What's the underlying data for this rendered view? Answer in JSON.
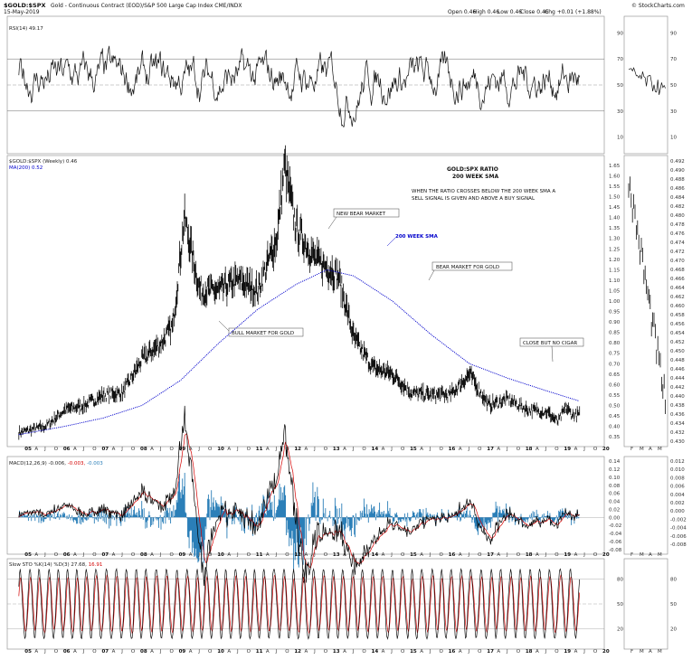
{
  "header": {
    "symbol": "$GOLD:$SPX",
    "description": "Gold - Continuous Contract (EOD)/S&P 500 Large Cap Index  CME/INDX",
    "date": "15-May-2019",
    "open": "Open 0.46",
    "high": "High 0.46",
    "low": "Low 0.46",
    "close": "Close 0.46",
    "chg": "Chg +0.01 (+1.88%)",
    "watermark": "© StockCharts.com"
  },
  "panels": {
    "rsi": {
      "legend": "RSI(14) 49.17",
      "levels": [
        "90",
        "70",
        "50",
        "30",
        "10"
      ]
    },
    "price": {
      "legend1": "$GOLD:$SPX (Weekly) 0.46",
      "legend2": "MA(200) 0.52",
      "ticks": [
        "1.65",
        "1.60",
        "1.55",
        "1.50",
        "1.45",
        "1.40",
        "1.35",
        "1.30",
        "1.25",
        "1.20",
        "1.15",
        "1.10",
        "1.05",
        "1.00",
        "0.95",
        "0.90",
        "0.85",
        "0.80",
        "0.75",
        "0.70",
        "0.65",
        "0.60",
        "0.55",
        "0.50",
        "0.45",
        "0.40",
        "0.35"
      ],
      "side_ticks": [
        "0.492",
        "0.490",
        "0.488",
        "0.486",
        "0.484",
        "0.482",
        "0.480",
        "0.478",
        "0.476",
        "0.474",
        "0.472",
        "0.470",
        "0.468",
        "0.466",
        "0.464",
        "0.462",
        "0.460",
        "0.458",
        "0.456",
        "0.454",
        "0.452",
        "0.450",
        "0.448",
        "0.446",
        "0.444",
        "0.442",
        "0.440",
        "0.438",
        "0.436",
        "0.434",
        "0.432",
        "0.430"
      ]
    },
    "macd": {
      "legend_a": "MACD(12,26,9) -0.006,",
      "legend_b": "-0.003,",
      "legend_c": "-0.003",
      "ticks": [
        "0.14",
        "0.12",
        "0.10",
        "0.08",
        "0.06",
        "0.04",
        "0.02",
        "0.00",
        "-0.02",
        "-0.04",
        "-0.06",
        "-0.08"
      ],
      "side_ticks": [
        "0.012",
        "0.010",
        "0.008",
        "0.006",
        "0.004",
        "0.002",
        "0.000",
        "-0.002",
        "-0.004",
        "-0.006",
        "-0.008"
      ]
    },
    "sto": {
      "legend_a": "Slow STO %K(14) %D(3) 27.68,",
      "legend_b": "16.91",
      "ticks": [
        "80",
        "50",
        "20"
      ]
    }
  },
  "annotations": {
    "title1": "GOLD:SPX RATIO",
    "title2": "200 WEEK SMA",
    "note1": "WHEN THE RATIO CROSSES BELOW THE 200 WEEK SMA A",
    "note2": "SELL SIGNAL IS GIVEN AND ABOVE A BUY SIGNAL",
    "new_bear": "NEW BEAR MARKET",
    "sma_label": "200 WEEK SMA",
    "bear_gold": "BEAR MARKET FOR GOLD",
    "bull_gold": "BULL MARKET FOR GOLD",
    "cigar": "CLOSE BUT NO CIGAR"
  },
  "x_axis": {
    "years": [
      "05",
      "06",
      "07",
      "08",
      "09",
      "10",
      "11",
      "12",
      "13",
      "14",
      "15",
      "16",
      "17",
      "18",
      "19",
      "20"
    ],
    "side_months": [
      "F",
      "M",
      "A",
      "M"
    ]
  },
  "colors": {
    "price": "#111111",
    "sma": "#0000cc",
    "macd": "#000000",
    "signal": "#d40000",
    "hist": "#2b7fb8",
    "grid": "#999999",
    "rsi_hi": "#3a5a3a",
    "rsi_lo": "#7a3a3a"
  },
  "chart_data": {
    "type": "line",
    "title": "GOLD:SPX RATIO 200 WEEK SMA",
    "series": [
      {
        "name": "$GOLD:$SPX (Weekly)",
        "x": [
          2004.8,
          2005.5,
          2006.0,
          2006.5,
          2007.0,
          2007.5,
          2008.0,
          2008.5,
          2008.8,
          2009.1,
          2009.5,
          2010.0,
          2010.5,
          2011.0,
          2011.5,
          2011.7,
          2012.0,
          2012.5,
          2012.9,
          2013.1,
          2013.5,
          2014.0,
          2014.5,
          2015.0,
          2015.5,
          2016.0,
          2016.5,
          2017.0,
          2017.5,
          2018.0,
          2018.5,
          2018.8,
          2019.0,
          2019.2,
          2019.37
        ],
        "values": [
          0.37,
          0.4,
          0.48,
          0.5,
          0.55,
          0.56,
          0.72,
          0.8,
          0.88,
          1.4,
          1.05,
          1.05,
          1.1,
          1.05,
          1.3,
          1.65,
          1.35,
          1.2,
          1.15,
          1.12,
          0.82,
          0.68,
          0.65,
          0.56,
          0.55,
          0.55,
          0.65,
          0.5,
          0.53,
          0.48,
          0.47,
          0.42,
          0.49,
          0.45,
          0.46
        ]
      },
      {
        "name": "MA(200)",
        "x": [
          2004.8,
          2006.0,
          2007.0,
          2008.0,
          2009.0,
          2010.0,
          2011.0,
          2012.0,
          2012.8,
          2013.5,
          2014.5,
          2015.5,
          2016.5,
          2017.5,
          2018.5,
          2019.37
        ],
        "values": [
          0.36,
          0.4,
          0.44,
          0.5,
          0.62,
          0.8,
          0.96,
          1.08,
          1.15,
          1.12,
          1.0,
          0.84,
          0.7,
          0.63,
          0.57,
          0.52
        ]
      }
    ],
    "ylim": [
      0.32,
      1.68
    ],
    "xlim": [
      2004.5,
      2020.0
    ]
  }
}
